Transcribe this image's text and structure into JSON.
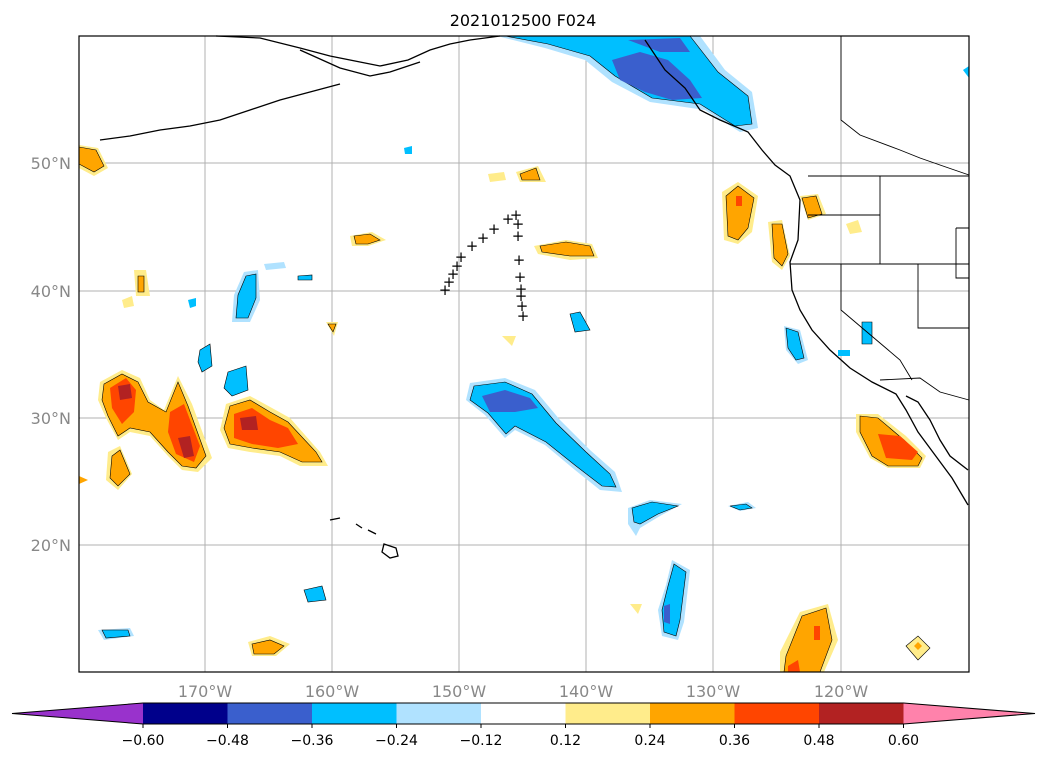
{
  "title": "2021012500 F024",
  "map": {
    "lat_labels": [
      "50°N",
      "40°N",
      "30°N",
      "20°N"
    ],
    "lon_labels": [
      "170°W",
      "160°W",
      "150°W",
      "140°W",
      "130°W",
      "120°W"
    ],
    "grid": true
  },
  "colorbar": {
    "ticks": [
      "−0.60",
      "−0.48",
      "−0.36",
      "−0.24",
      "−0.12",
      "0.12",
      "0.24",
      "0.36",
      "0.48",
      "0.60"
    ],
    "colors": [
      "#9932cc",
      "#00008b",
      "#3a5fcd",
      "#00bfff",
      "#b0e2ff",
      "#ffffff",
      "#ffec8b",
      "#ffa500",
      "#ff4500",
      "#b22222",
      "#ff82ab"
    ],
    "extend": "both"
  },
  "markers": {
    "symbol": "+"
  }
}
